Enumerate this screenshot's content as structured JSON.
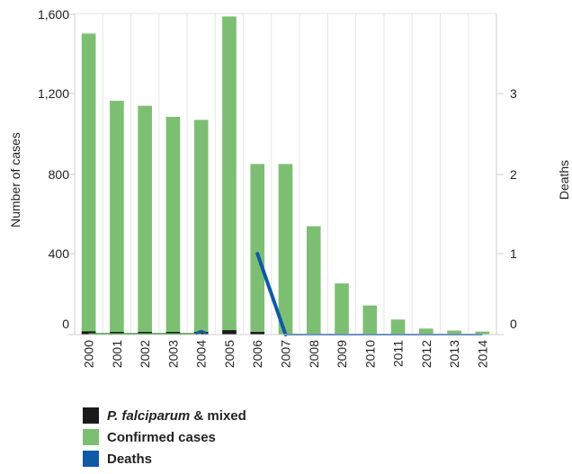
{
  "chart_data": {
    "type": "bar",
    "categories": [
      "2000",
      "2001",
      "2002",
      "2003",
      "2004",
      "2005",
      "2006",
      "2007",
      "2008",
      "2009",
      "2010",
      "2011",
      "2012",
      "2013",
      "2014"
    ],
    "series": [
      {
        "name": "P. falciparum & mixed",
        "type": "bar",
        "axis": "left",
        "color": "#1a1a1a",
        "values": [
          16,
          4,
          4,
          3,
          3,
          22,
          6,
          0,
          0,
          0,
          0,
          0,
          0,
          0,
          0
        ]
      },
      {
        "name": "Confirmed cases",
        "type": "bar",
        "axis": "left",
        "color": "#7cbf72",
        "values": [
          1500,
          1165,
          1140,
          1085,
          1070,
          1585,
          850,
          850,
          540,
          255,
          145,
          75,
          30,
          20,
          15
        ]
      },
      {
        "name": "Deaths",
        "type": "line",
        "axis": "right",
        "color": "#0e5aa7",
        "values": [
          0,
          0,
          0,
          0,
          0,
          null,
          1,
          0,
          0,
          0,
          0,
          0,
          0,
          0,
          0
        ]
      }
    ],
    "ylabel": "Number of cases",
    "y2label": "Deaths",
    "ylim": [
      0,
      1600
    ],
    "y2lim": [
      0,
      4
    ],
    "yticks": [
      "0",
      "400",
      "800",
      "1,200",
      "1,600"
    ],
    "y2ticks": [
      "0",
      "1",
      "2",
      "3"
    ],
    "grid": "vertical",
    "legend_position": "bottom-left"
  },
  "legend": {
    "falciparum_italic": "P. falciparum",
    "falciparum_rest": " & mixed",
    "confirmed": "Confirmed cases",
    "deaths": "Deaths"
  }
}
